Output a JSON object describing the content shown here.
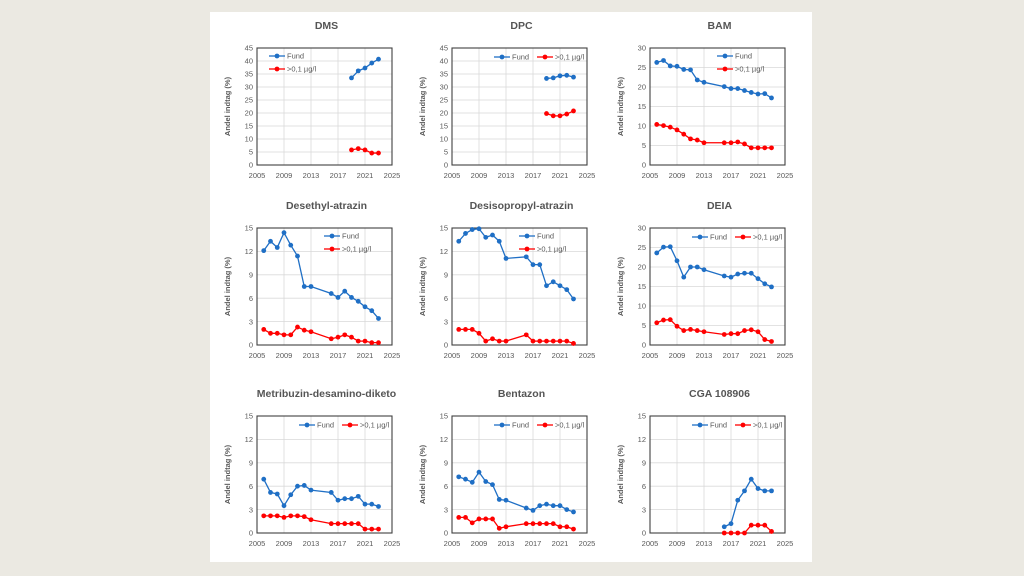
{
  "colors": {
    "fund": "#1f6fc5",
    "exceed": "#ff0000",
    "grid": "#d9d9d9",
    "axis": "#404040"
  },
  "series_names": [
    "Fund",
    ">0,1 µg/l"
  ],
  "chart_data": [
    {
      "type": "line",
      "title": "DMS",
      "ylabel": "Andel indtag (%)",
      "xlim": [
        2005,
        2025
      ],
      "xticks": [
        2005,
        2009,
        2013,
        2017,
        2021,
        2025
      ],
      "ylim": [
        0,
        45
      ],
      "yticks": [
        0,
        5,
        10,
        15,
        20,
        25,
        30,
        35,
        40,
        45
      ],
      "grid": true,
      "legend": "top-left-stacked",
      "series": [
        {
          "name": "Fund",
          "x": [
            2019,
            2020,
            2021,
            2022,
            2023
          ],
          "values": [
            33.5,
            36.2,
            37.3,
            39.2,
            40.7
          ]
        },
        {
          "name": ">0,1 µg/l",
          "x": [
            2019,
            2020,
            2021,
            2022,
            2023
          ],
          "values": [
            5.8,
            6.3,
            5.8,
            4.6,
            4.6
          ]
        }
      ]
    },
    {
      "type": "line",
      "title": "DPC",
      "ylabel": "Andel indtag (%)",
      "xlim": [
        2005,
        2025
      ],
      "xticks": [
        2005,
        2009,
        2013,
        2017,
        2021,
        2025
      ],
      "ylim": [
        0,
        45
      ],
      "yticks": [
        0,
        5,
        10,
        15,
        20,
        25,
        30,
        35,
        40,
        45
      ],
      "grid": true,
      "legend": "top-right-row",
      "series": [
        {
          "name": "Fund",
          "x": [
            2019,
            2020,
            2021,
            2022,
            2023
          ],
          "values": [
            33.3,
            33.5,
            34.3,
            34.5,
            33.8
          ]
        },
        {
          "name": ">0,1 µg/l",
          "x": [
            2019,
            2020,
            2021,
            2022,
            2023
          ],
          "values": [
            19.8,
            18.9,
            18.9,
            19.6,
            20.8
          ]
        }
      ]
    },
    {
      "type": "line",
      "title": "BAM",
      "ylabel": "Andel indtag (%)",
      "xlim": [
        2005,
        2025
      ],
      "xticks": [
        2005,
        2009,
        2013,
        2017,
        2021,
        2025
      ],
      "ylim": [
        0,
        30
      ],
      "yticks": [
        0,
        5,
        10,
        15,
        20,
        25,
        30
      ],
      "grid": true,
      "legend": "top-right-stacked",
      "series": [
        {
          "name": "Fund",
          "x": [
            2006,
            2007,
            2008,
            2009,
            2010,
            2011,
            2012,
            2013,
            2016,
            2017,
            2018,
            2019,
            2020,
            2021,
            2022,
            2023
          ],
          "values": [
            26.3,
            26.8,
            25.4,
            25.3,
            24.5,
            24.4,
            21.8,
            21.2,
            20.1,
            19.6,
            19.6,
            19.1,
            18.6,
            18.2,
            18.3,
            17.2
          ]
        },
        {
          "name": ">0,1 µg/l",
          "x": [
            2006,
            2007,
            2008,
            2009,
            2010,
            2011,
            2012,
            2013,
            2016,
            2017,
            2018,
            2019,
            2020,
            2021,
            2022,
            2023
          ],
          "values": [
            10.4,
            10.1,
            9.7,
            9.0,
            7.9,
            6.7,
            6.4,
            5.7,
            5.7,
            5.7,
            5.9,
            5.4,
            4.4,
            4.4,
            4.4,
            4.4
          ]
        }
      ]
    },
    {
      "type": "line",
      "title": "Desethyl-atrazin",
      "ylabel": "Andel indtag (%)",
      "xlim": [
        2005,
        2025
      ],
      "xticks": [
        2005,
        2009,
        2013,
        2017,
        2021,
        2025
      ],
      "ylim": [
        0,
        15
      ],
      "yticks": [
        0,
        3,
        6,
        9,
        12,
        15
      ],
      "grid": true,
      "legend": "top-right-stacked",
      "series": [
        {
          "name": "Fund",
          "x": [
            2006,
            2007,
            2008,
            2009,
            2010,
            2011,
            2012,
            2013,
            2016,
            2017,
            2018,
            2019,
            2020,
            2021,
            2022,
            2023
          ],
          "values": [
            12.1,
            13.3,
            12.5,
            14.4,
            12.8,
            11.4,
            7.5,
            7.5,
            6.6,
            6.1,
            6.9,
            6.1,
            5.6,
            4.9,
            4.4,
            3.4
          ]
        },
        {
          "name": ">0,1 µg/l",
          "x": [
            2006,
            2007,
            2008,
            2009,
            2010,
            2011,
            2012,
            2013,
            2016,
            2017,
            2018,
            2019,
            2020,
            2021,
            2022,
            2023
          ],
          "values": [
            2.0,
            1.5,
            1.5,
            1.3,
            1.3,
            2.3,
            1.9,
            1.7,
            0.8,
            1.0,
            1.3,
            1.0,
            0.5,
            0.5,
            0.3,
            0.3
          ]
        }
      ]
    },
    {
      "type": "line",
      "title": "Desisopropyl-atrazin",
      "ylabel": "Andel indtag (%)",
      "xlim": [
        2005,
        2025
      ],
      "xticks": [
        2005,
        2009,
        2013,
        2017,
        2021,
        2025
      ],
      "ylim": [
        0,
        15
      ],
      "yticks": [
        0,
        3,
        6,
        9,
        12,
        15
      ],
      "grid": true,
      "legend": "top-right-stacked",
      "series": [
        {
          "name": "Fund",
          "x": [
            2006,
            2007,
            2008,
            2009,
            2010,
            2011,
            2012,
            2013,
            2016,
            2017,
            2018,
            2019,
            2020,
            2021,
            2022,
            2023
          ],
          "values": [
            13.3,
            14.3,
            14.8,
            14.9,
            13.8,
            14.1,
            13.3,
            11.1,
            11.3,
            10.3,
            10.3,
            7.6,
            8.1,
            7.6,
            7.1,
            5.9
          ]
        },
        {
          "name": ">0,1 µg/l",
          "x": [
            2006,
            2007,
            2008,
            2009,
            2010,
            2011,
            2012,
            2013,
            2016,
            2017,
            2018,
            2019,
            2020,
            2021,
            2022,
            2023
          ],
          "values": [
            2.0,
            2.0,
            2.0,
            1.5,
            0.5,
            0.8,
            0.5,
            0.5,
            1.3,
            0.5,
            0.5,
            0.5,
            0.5,
            0.5,
            0.5,
            0.2
          ]
        }
      ]
    },
    {
      "type": "line",
      "title": "DEIA",
      "ylabel": "Andel indtag (%)",
      "xlim": [
        2005,
        2025
      ],
      "xticks": [
        2005,
        2009,
        2013,
        2017,
        2021,
        2025
      ],
      "ylim": [
        0,
        30
      ],
      "yticks": [
        0,
        5,
        10,
        15,
        20,
        25,
        30
      ],
      "grid": true,
      "legend": "top-right-row",
      "series": [
        {
          "name": "Fund",
          "x": [
            2006,
            2007,
            2008,
            2009,
            2010,
            2011,
            2012,
            2013,
            2016,
            2017,
            2018,
            2019,
            2020,
            2021,
            2022,
            2023
          ],
          "values": [
            23.6,
            25.1,
            25.2,
            21.6,
            17.4,
            20.0,
            20.0,
            19.3,
            17.7,
            17.4,
            18.2,
            18.4,
            18.4,
            17.0,
            15.7,
            14.9
          ]
        },
        {
          "name": ">0,1 µg/l",
          "x": [
            2006,
            2007,
            2008,
            2009,
            2010,
            2011,
            2012,
            2013,
            2016,
            2017,
            2018,
            2019,
            2020,
            2021,
            2022,
            2023
          ],
          "values": [
            5.7,
            6.4,
            6.5,
            4.8,
            3.7,
            4.0,
            3.7,
            3.4,
            2.7,
            2.9,
            2.9,
            3.7,
            3.9,
            3.4,
            1.4,
            0.9
          ]
        }
      ]
    },
    {
      "type": "line",
      "title": "Metribuzin-desamino-diketo",
      "ylabel": "Andel indtag (%)",
      "xlim": [
        2005,
        2025
      ],
      "xticks": [
        2005,
        2009,
        2013,
        2017,
        2021,
        2025
      ],
      "ylim": [
        0,
        15
      ],
      "yticks": [
        0,
        3,
        6,
        9,
        12,
        15
      ],
      "grid": true,
      "legend": "top-right-row",
      "series": [
        {
          "name": "Fund",
          "x": [
            2006,
            2007,
            2008,
            2009,
            2010,
            2011,
            2012,
            2013,
            2016,
            2017,
            2018,
            2019,
            2020,
            2021,
            2022,
            2023
          ],
          "values": [
            6.9,
            5.2,
            5.0,
            3.5,
            4.9,
            6.0,
            6.1,
            5.5,
            5.2,
            4.2,
            4.4,
            4.4,
            4.7,
            3.7,
            3.7,
            3.4
          ]
        },
        {
          "name": ">0,1 µg/l",
          "x": [
            2006,
            2007,
            2008,
            2009,
            2010,
            2011,
            2012,
            2013,
            2016,
            2017,
            2018,
            2019,
            2020,
            2021,
            2022,
            2023
          ],
          "values": [
            2.2,
            2.2,
            2.2,
            2.0,
            2.2,
            2.2,
            2.1,
            1.7,
            1.2,
            1.2,
            1.2,
            1.2,
            1.2,
            0.5,
            0.5,
            0.5
          ]
        }
      ]
    },
    {
      "type": "line",
      "title": "Bentazon",
      "ylabel": "Andel indtag (%)",
      "xlim": [
        2005,
        2025
      ],
      "xticks": [
        2005,
        2009,
        2013,
        2017,
        2021,
        2025
      ],
      "ylim": [
        0,
        15
      ],
      "yticks": [
        0,
        3,
        6,
        9,
        12,
        15
      ],
      "grid": true,
      "legend": "top-right-row",
      "series": [
        {
          "name": "Fund",
          "x": [
            2006,
            2007,
            2008,
            2009,
            2010,
            2011,
            2012,
            2013,
            2016,
            2017,
            2018,
            2019,
            2020,
            2021,
            2022,
            2023
          ],
          "values": [
            7.2,
            6.9,
            6.5,
            7.8,
            6.6,
            6.2,
            4.3,
            4.2,
            3.2,
            2.9,
            3.5,
            3.7,
            3.5,
            3.5,
            3.0,
            2.7
          ]
        },
        {
          "name": ">0,1 µg/l",
          "x": [
            2006,
            2007,
            2008,
            2009,
            2010,
            2011,
            2012,
            2013,
            2016,
            2017,
            2018,
            2019,
            2020,
            2021,
            2022,
            2023
          ],
          "values": [
            2.0,
            2.0,
            1.3,
            1.8,
            1.8,
            1.8,
            0.6,
            0.8,
            1.2,
            1.2,
            1.2,
            1.2,
            1.2,
            0.8,
            0.8,
            0.5
          ]
        }
      ]
    },
    {
      "type": "line",
      "title": "CGA 108906",
      "ylabel": "Andel indtag (%)",
      "xlim": [
        2005,
        2025
      ],
      "xticks": [
        2005,
        2009,
        2013,
        2017,
        2021,
        2025
      ],
      "ylim": [
        0,
        15
      ],
      "yticks": [
        0,
        3,
        6,
        9,
        12,
        15
      ],
      "grid": true,
      "legend": "top-right-row",
      "series": [
        {
          "name": "Fund",
          "x": [
            2016,
            2017,
            2018,
            2019,
            2020,
            2021,
            2022,
            2023
          ],
          "values": [
            0.8,
            1.2,
            4.2,
            5.4,
            6.9,
            5.7,
            5.4,
            5.4
          ]
        },
        {
          "name": ">0,1 µg/l",
          "x": [
            2016,
            2017,
            2018,
            2019,
            2020,
            2021,
            2022,
            2023
          ],
          "values": [
            0,
            0,
            0,
            0,
            1.0,
            1.0,
            1.0,
            0.2
          ]
        }
      ]
    }
  ]
}
